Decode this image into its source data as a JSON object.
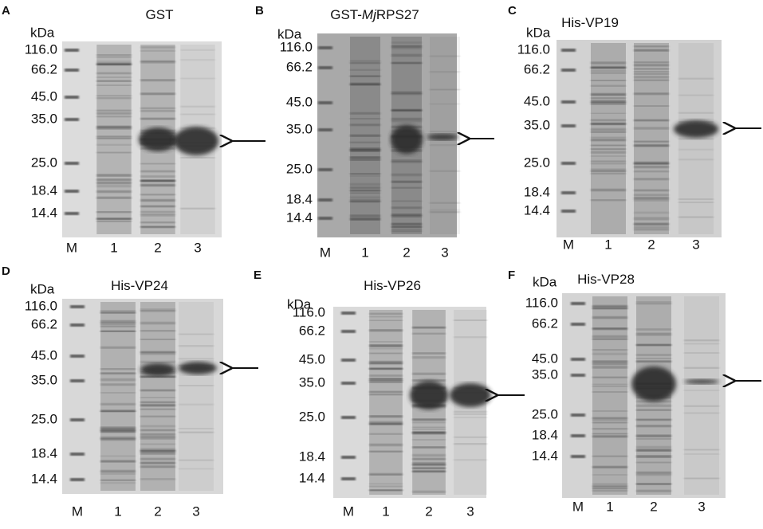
{
  "panels": [
    {
      "letter": "A",
      "kda": "kDa",
      "title_parts": [
        {
          "text": "GST",
          "italic": false
        }
      ],
      "markers": [
        "116.0",
        "66.2",
        "45.0",
        "35.0",
        "25.0",
        "18.4",
        "14.4"
      ],
      "lanes": [
        "M",
        "1",
        "2",
        "3"
      ]
    },
    {
      "letter": "B",
      "kda": "kDa",
      "title_parts": [
        {
          "text": "GST-",
          "italic": false
        },
        {
          "text": "Mj",
          "italic": true
        },
        {
          "text": "RPS27",
          "italic": false
        }
      ],
      "markers": [
        "116.0",
        "66.2",
        "45.0",
        "35.0",
        "25.0",
        "18.4",
        "14.4"
      ],
      "lanes": [
        "M",
        "1",
        "2",
        "3"
      ]
    },
    {
      "letter": "C",
      "kda": "kDa",
      "title_parts": [
        {
          "text": "His-VP19",
          "italic": false
        }
      ],
      "markers": [
        "116.0",
        "66.2",
        "45.0",
        "35.0",
        "25.0",
        "18.4",
        "14.4"
      ],
      "lanes": [
        "M",
        "1",
        "2",
        "3"
      ]
    },
    {
      "letter": "D",
      "kda": "kDa",
      "title_parts": [
        {
          "text": "His-VP24",
          "italic": false
        }
      ],
      "markers": [
        "116.0",
        "66.2",
        "45.0",
        "35.0",
        "25.0",
        "18.4",
        "14.4"
      ],
      "lanes": [
        "M",
        "1",
        "2",
        "3"
      ]
    },
    {
      "letter": "E",
      "kda": "kDa",
      "title_parts": [
        {
          "text": "His-VP26",
          "italic": false
        }
      ],
      "markers": [
        "116.0",
        "66.2",
        "45.0",
        "35.0",
        "25.0",
        "18.4",
        "14.4"
      ],
      "lanes": [
        "M",
        "1",
        "2",
        "3"
      ]
    },
    {
      "letter": "F",
      "kda": "kDa",
      "title_parts": [
        {
          "text": "His-VP28",
          "italic": false
        }
      ],
      "markers": [
        "116.0",
        "66.2",
        "45.0",
        "35.0",
        "25.0",
        "18.4",
        "14.4"
      ],
      "lanes": [
        "M",
        "1",
        "2",
        "3"
      ]
    }
  ]
}
